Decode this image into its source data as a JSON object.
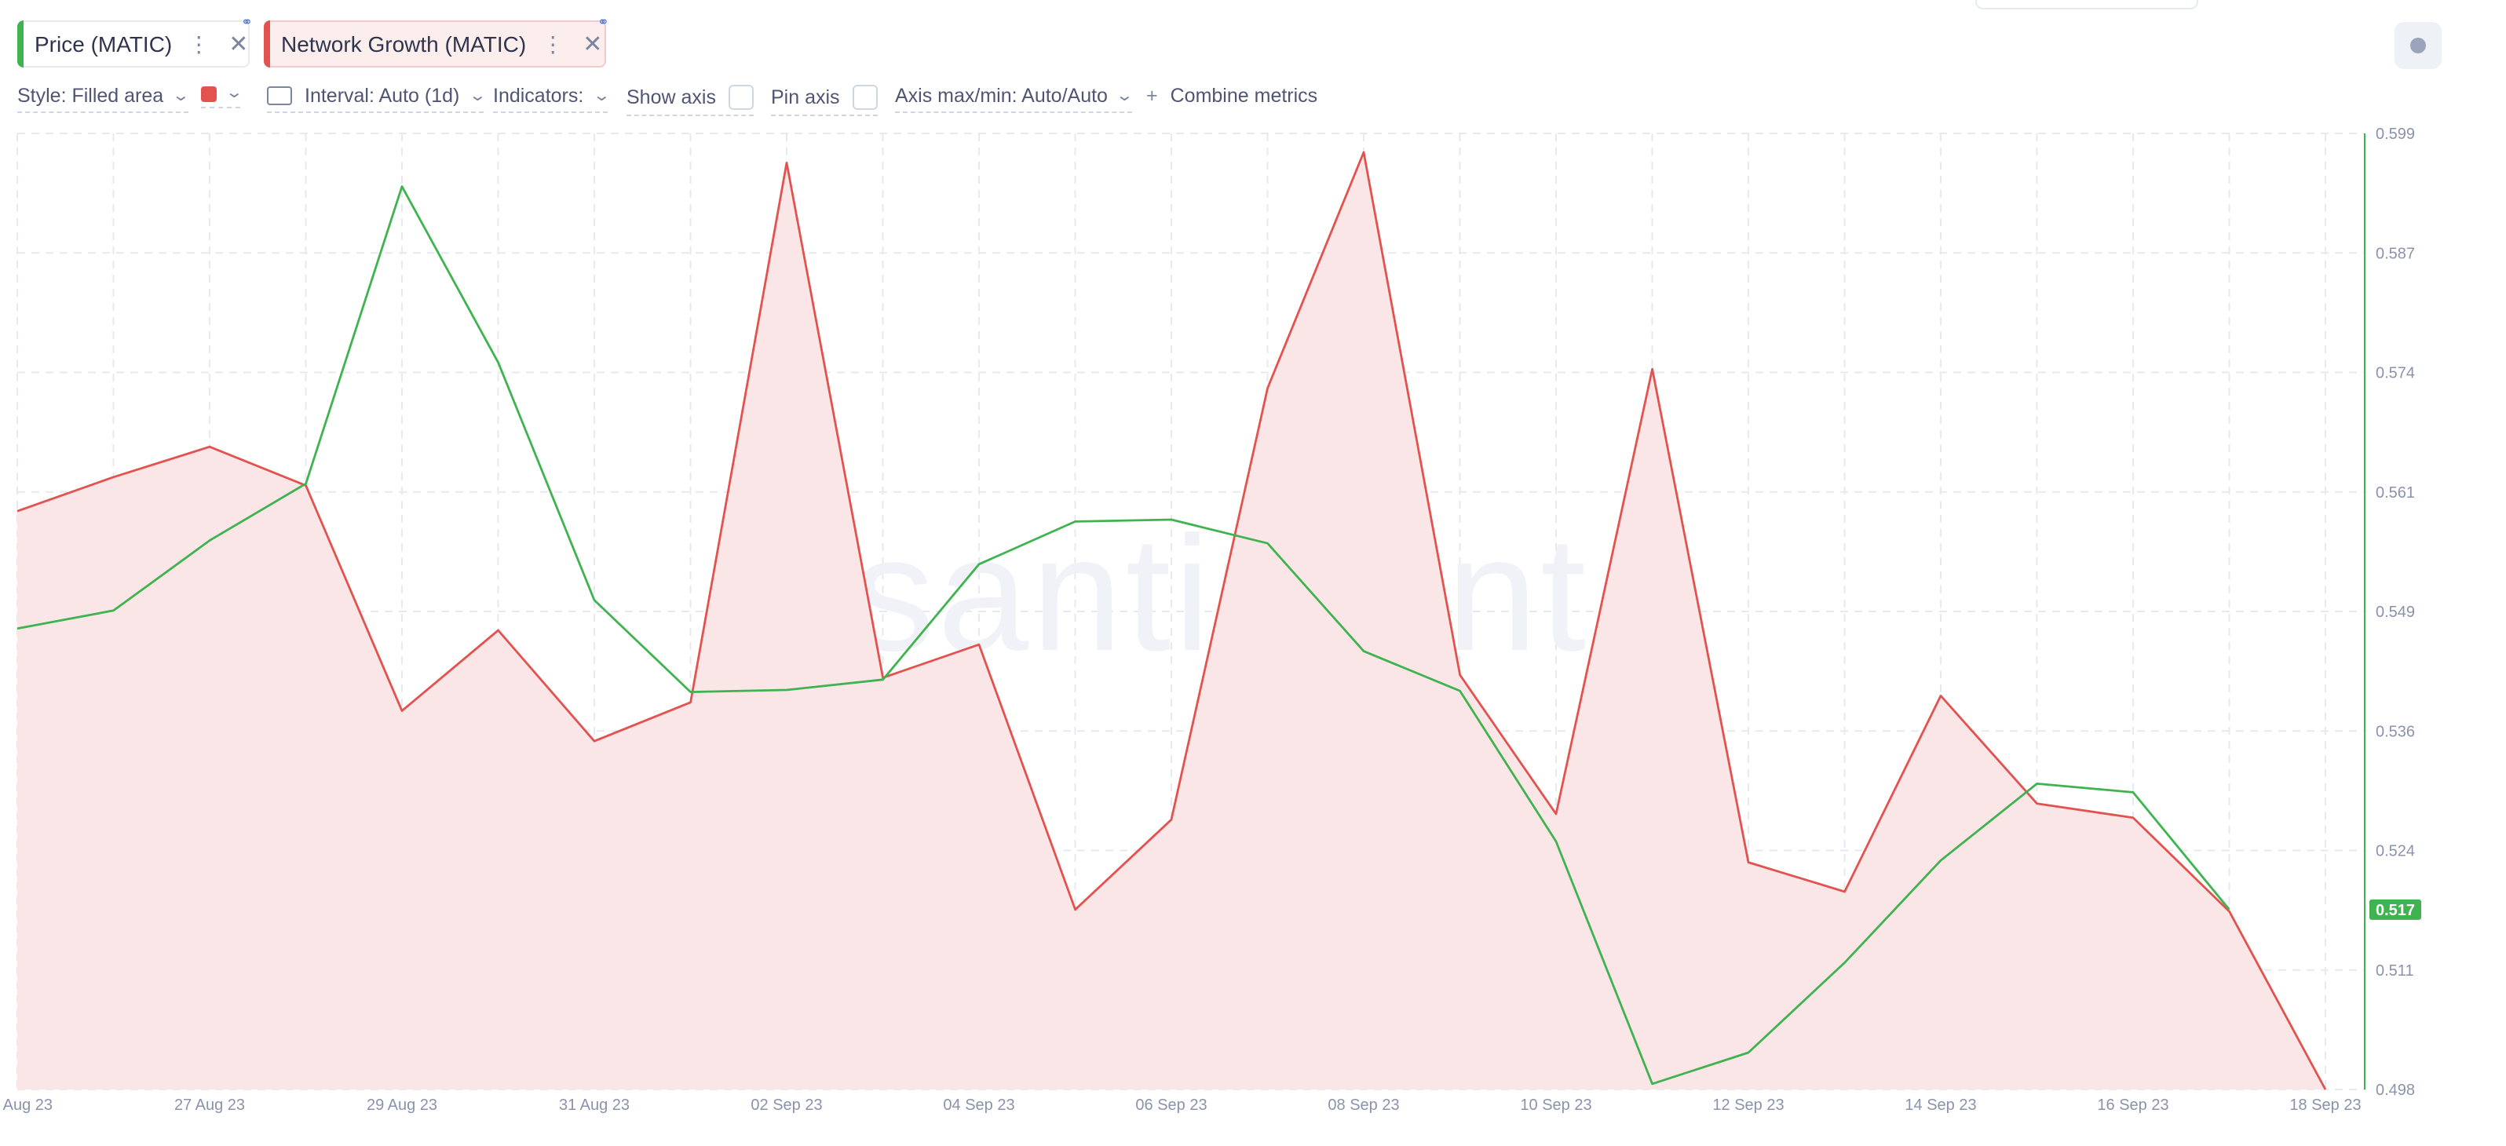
{
  "metrics": [
    {
      "label": "Price (MATIC)",
      "color": "#3fb34f"
    },
    {
      "label": "Network Growth (MATIC)",
      "color": "#e2524f"
    }
  ],
  "icons": {
    "menu": "vertical-dots-icon",
    "close": "close-icon",
    "link": "link-icon",
    "chevron": "chevron-down-icon"
  },
  "settings": {
    "style_label": "Style: Filled area",
    "color_swatch": "#e2524f",
    "interval_label": "Interval: Auto (1d)",
    "indicators_label": "Indicators:",
    "show_axis_label": "Show axis",
    "pin_axis_label": "Pin axis",
    "axis_minmax_label": "Axis max/min: Auto/Auto",
    "combine_label": "Combine metrics",
    "combine_prefix": "+"
  },
  "watermark": "santiment.",
  "chart_data": {
    "type": "line",
    "x": [
      "25 Aug 23",
      "26 Aug 23",
      "27 Aug 23",
      "28 Aug 23",
      "29 Aug 23",
      "30 Aug 23",
      "31 Aug 23",
      "01 Sep 23",
      "02 Sep 23",
      "03 Sep 23",
      "04 Sep 23",
      "05 Sep 23",
      "06 Sep 23",
      "07 Sep 23",
      "08 Sep 23",
      "09 Sep 23",
      "10 Sep 23",
      "11 Sep 23",
      "12 Sep 23",
      "13 Sep 23",
      "14 Sep 23",
      "15 Sep 23",
      "16 Sep 23",
      "17 Sep 23",
      "18 Sep 23"
    ],
    "x_tick_labels": [
      "25 Aug 23",
      "27 Aug 23",
      "29 Aug 23",
      "31 Aug 23",
      "02 Sep 23",
      "04 Sep 23",
      "06 Sep 23",
      "08 Sep 23",
      "10 Sep 23",
      "12 Sep 23",
      "14 Sep 23",
      "16 Sep 23",
      "18 Sep 23"
    ],
    "y_ticks": [
      "0.599",
      "0.587",
      "0.574",
      "0.561",
      "0.549",
      "0.536",
      "0.524",
      "0.511",
      "0.498"
    ],
    "ylim": [
      0.498,
      0.599
    ],
    "current_value_label": "0.517",
    "series": [
      {
        "name": "Price (MATIC)",
        "style": "line",
        "color": "#3fb34f",
        "values": [
          0.5467,
          0.5486,
          0.556,
          0.562,
          0.5934,
          0.5748,
          0.5497,
          0.54,
          0.5402,
          0.5413,
          0.5535,
          0.558,
          0.5582,
          0.5557,
          0.5443,
          0.5401,
          0.5242,
          0.4986,
          0.5019,
          0.5114,
          0.5222,
          0.5303,
          0.5294,
          0.517,
          null
        ]
      },
      {
        "name": "Network Growth (MATIC)",
        "style": "filled-area",
        "color": "#e2524f",
        "fill": "#fbe6e7",
        "relative_levels": [
          0.611,
          0.647,
          0.679,
          0.638,
          0.4,
          0.485,
          0.368,
          0.409,
          0.979,
          0.435,
          0.47,
          0.19,
          0.285,
          0.741,
          0.99,
          0.438,
          0.291,
          0.761,
          0.24,
          0.209,
          0.416,
          0.302,
          0.287,
          0.188,
          0.0
        ]
      }
    ],
    "grid": true,
    "legend": "top-left"
  }
}
